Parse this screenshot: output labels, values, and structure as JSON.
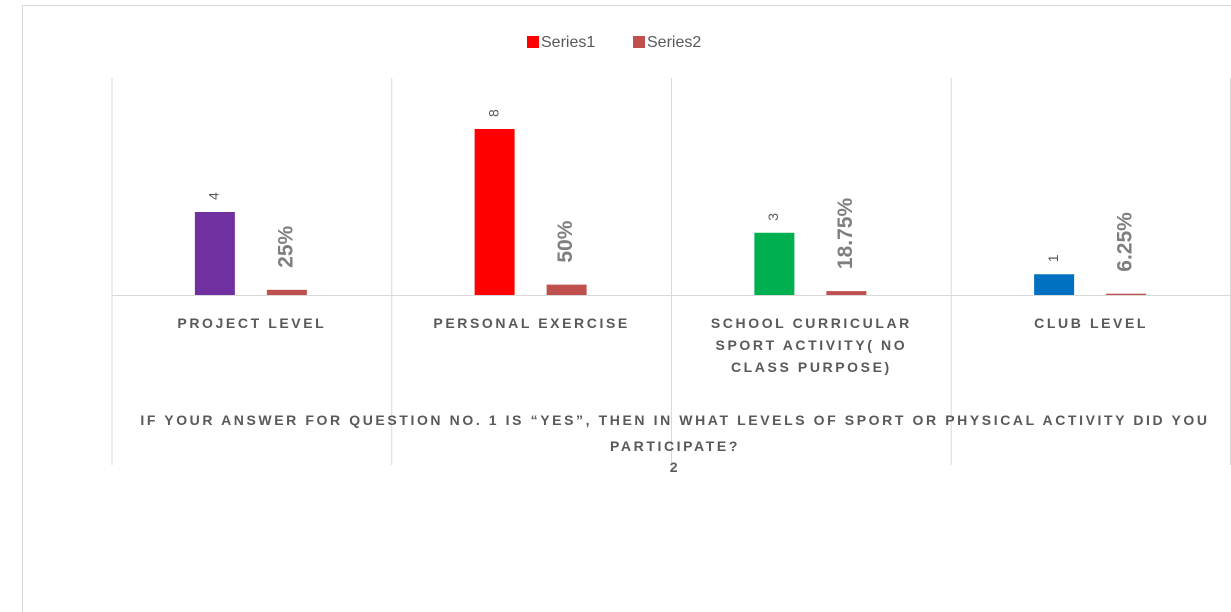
{
  "chart_data": {
    "type": "bar",
    "categories": [
      "PROJECT LEVEL",
      "PERSONAL EXERCISE",
      "SCHOOL CURRICULAR SPORT ACTIVITY( NO CLASS PURPOSE)",
      "CLUB LEVEL"
    ],
    "series": [
      {
        "name": "Series1",
        "color": "#ff0000",
        "point_colors": [
          "#7030a0",
          "#ff0000",
          "#00b050",
          "#0070c0"
        ],
        "values": [
          4,
          8,
          3,
          1
        ]
      },
      {
        "name": "Series2",
        "color": "#c0504d",
        "values": [
          0.25,
          0.5,
          0.1875,
          0.0625
        ],
        "value_labels": [
          "25%",
          "50%",
          "18.75%",
          "6.25%"
        ]
      }
    ],
    "ylim": [
      0,
      10
    ],
    "x_axis_title": "IF YOUR ANSWER FOR QUESTION NO. 1 IS “YES”, THEN IN WHAT LEVELS OF SPORT OR PHYSICAL ACTIVITY DID YOU PARTICIPATE?",
    "x_axis_subtitle": "2",
    "legend": "top"
  }
}
